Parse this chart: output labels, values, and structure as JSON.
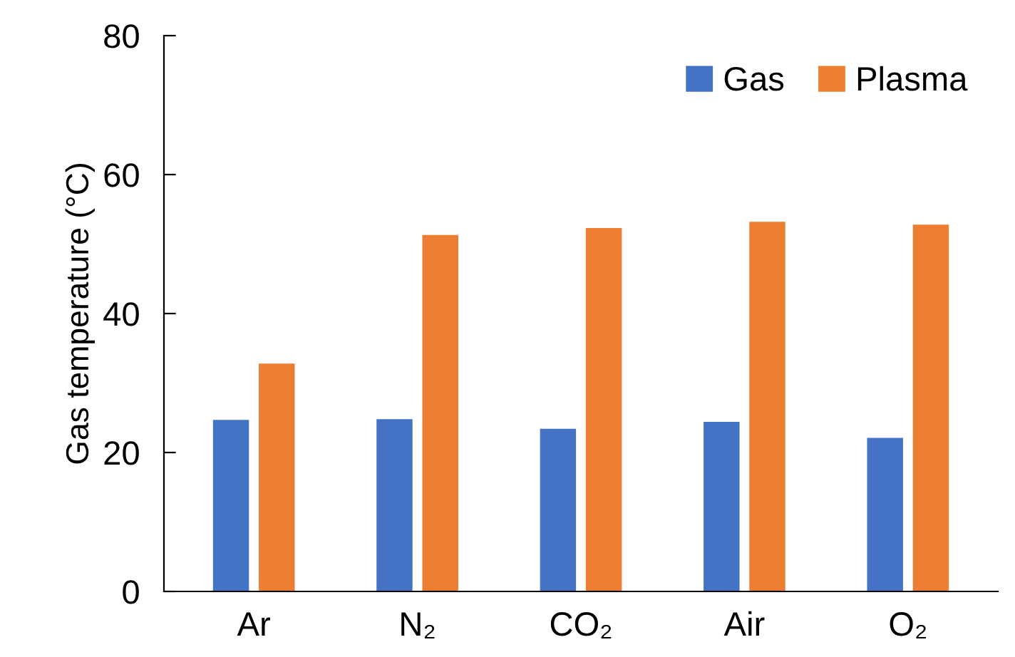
{
  "chart_data": {
    "type": "bar",
    "ylabel": "Gas temperature (°C)",
    "categories": [
      "Ar",
      "N₂",
      "CO₂",
      "Air",
      "O₂"
    ],
    "series": [
      {
        "name": "Gas",
        "color": "#4472c4",
        "values": [
          24.7,
          24.8,
          23.4,
          24.4,
          22.1
        ]
      },
      {
        "name": "Plasma",
        "color": "#ed7d31",
        "values": [
          32.8,
          51.3,
          52.3,
          53.2,
          52.8
        ]
      }
    ],
    "ylim": [
      0,
      80
    ],
    "yticks": [
      0,
      20,
      40,
      60,
      80
    ],
    "grid": false,
    "legend": "top right"
  }
}
